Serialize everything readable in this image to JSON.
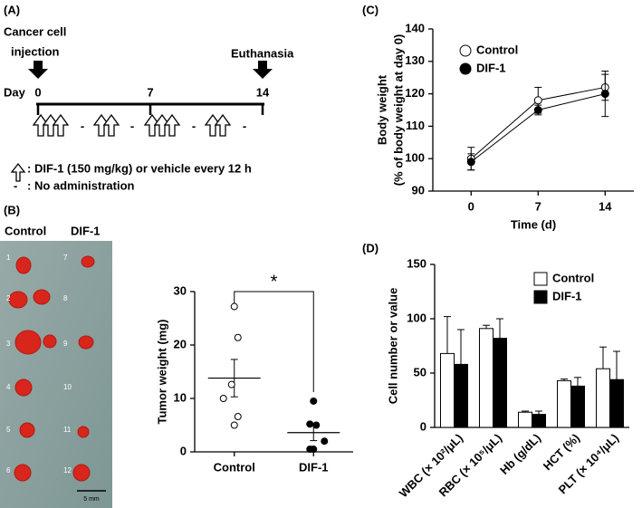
{
  "panel_labels": [
    "(A)",
    "(B)",
    "(C)",
    "(D)"
  ],
  "timeline": {
    "start_event": [
      "Cancer cell",
      "injection"
    ],
    "end_event": "Euthanasia",
    "day_label": "Day",
    "days": [
      0,
      7,
      14
    ],
    "gap_mark": "-",
    "legend": [
      ": DIF-1 (150 mg/kg) or vehicle every 12 h",
      ": No administration"
    ]
  },
  "photo": {
    "columns": [
      "Control",
      "DIF-1"
    ],
    "tumor_ids": [
      [
        "1",
        "2",
        "3",
        "4",
        "5",
        "6"
      ],
      [
        "7",
        "8",
        "9",
        "10",
        "11",
        "12"
      ]
    ],
    "scale_bar": "5 mm"
  },
  "chart_data": [
    {
      "type": "dot",
      "y_label": "Tumor weight (mg)",
      "categories": [
        "Control",
        "DIF-1"
      ],
      "values": [
        [
          27.2,
          21.4,
          12.6,
          10.0,
          6.6,
          5.0
        ],
        [
          9.5,
          5.2,
          5.0,
          2.0,
          0.5,
          0.5
        ]
      ],
      "means": [
        13.8,
        3.6
      ],
      "sems": [
        3.5,
        1.5
      ],
      "marker_colors": [
        "#ffffff",
        "#000000"
      ],
      "annotation": "*",
      "ylim": [
        0,
        30
      ],
      "yticks": [
        0,
        10,
        20,
        30
      ]
    },
    {
      "type": "line",
      "y_label": [
        "Body weight",
        "(% of body weight at day 0)"
      ],
      "x_label": "Time (d)",
      "x": [
        0,
        7,
        14
      ],
      "xlim": [
        -4,
        17
      ],
      "xticks": [
        0,
        7,
        14
      ],
      "ylim": [
        90,
        140
      ],
      "yticks": [
        90,
        100,
        110,
        120,
        130,
        140
      ],
      "legend": "upper left",
      "series": [
        {
          "name": "Control",
          "color": "#ffffff",
          "values": [
            100,
            118,
            122
          ],
          "errors": [
            3.5,
            4,
            4
          ]
        },
        {
          "name": "DIF-1",
          "color": "#000000",
          "values": [
            99,
            115,
            120
          ],
          "errors": [
            2.5,
            1.5,
            7
          ]
        }
      ]
    },
    {
      "type": "bar",
      "y_label": "Cell number or value",
      "categories": [
        "WBC (× 10²/μL)",
        "RBC (× 10⁵/μL)",
        "Hb (g/dL)",
        "HCT (%)",
        "PLT (× 10⁴/μL)"
      ],
      "ylim": [
        0,
        150
      ],
      "yticks": [
        0,
        50,
        100,
        150
      ],
      "legend": "upper right",
      "series": [
        {
          "name": "Control",
          "color": "#ffffff",
          "values": [
            68,
            91,
            14,
            43,
            54
          ],
          "errors": [
            34,
            3,
            1,
            1.5,
            20
          ]
        },
        {
          "name": "DIF-1",
          "color": "#000000",
          "values": [
            58,
            82,
            12,
            38,
            44
          ],
          "errors": [
            32,
            18,
            3,
            8,
            26
          ]
        }
      ]
    }
  ]
}
